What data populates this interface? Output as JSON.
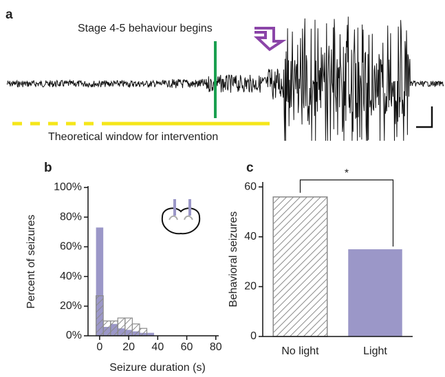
{
  "panel_a": {
    "panel_label": "a",
    "annotation": "Stage 4-5 behaviour begins",
    "window_label": "Theoretical window for intervention"
  },
  "chart_data": [
    {
      "type": "histogram",
      "panel_label": "b",
      "x_label": "Seizure duration (s)",
      "y_label": "Percent of seizures",
      "bins": [
        -2.5,
        2.5,
        7.5,
        12.5,
        17.5,
        22.5,
        27.5,
        32.5,
        37.5
      ],
      "series": [
        {
          "color": "#9b97c8",
          "pattern": "solid",
          "values": [
            73,
            6,
            8,
            5,
            4,
            3,
            2,
            2
          ]
        },
        {
          "color": "#8a8a8a",
          "pattern": "hatched",
          "values": [
            27,
            10,
            10,
            12,
            12,
            8,
            5,
            0
          ]
        }
      ],
      "xlim": [
        -8,
        82
      ],
      "xticks": [
        0,
        20,
        40,
        60,
        80
      ],
      "ylim": [
        0,
        100
      ],
      "yticks": [
        {
          "value": 0,
          "label": "0%"
        },
        {
          "value": 20,
          "label": "20%"
        },
        {
          "value": 40,
          "label": "40%"
        },
        {
          "value": 60,
          "label": "60%"
        },
        {
          "value": 80,
          "label": "80%"
        },
        {
          "value": 100,
          "label": "100%"
        }
      ]
    },
    {
      "type": "bar",
      "panel_label": "c",
      "y_label": "Behavioral seizures",
      "categories": [
        "No light",
        "Light"
      ],
      "values": [
        56,
        35
      ],
      "colors": [
        "#8a8a8a",
        "#9b97c8"
      ],
      "patterns": [
        "hatched",
        "solid"
      ],
      "ylim": [
        0,
        62
      ],
      "yticks": [
        0,
        20,
        40,
        60
      ],
      "annotation": "*"
    }
  ]
}
